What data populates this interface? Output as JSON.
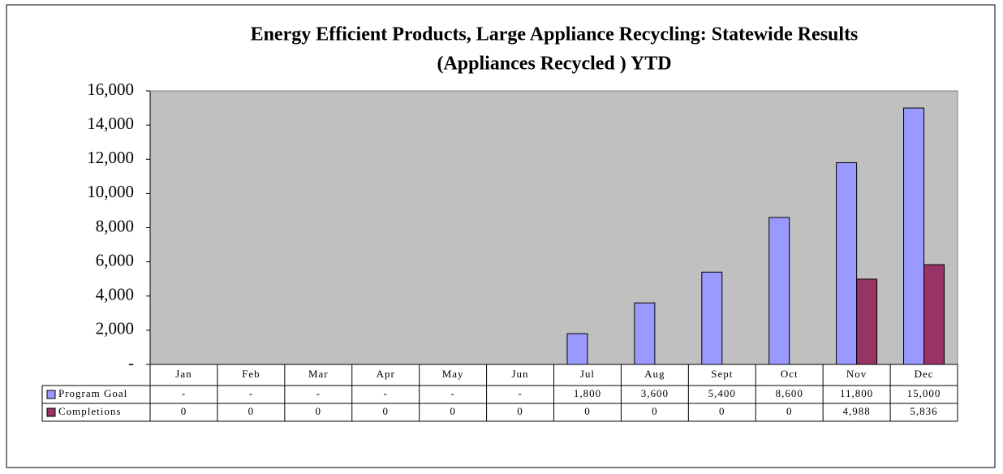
{
  "chart_data": {
    "type": "bar",
    "title": [
      "Energy Efficient Products, Large Appliance Recycling: Statewide Results",
      "(Appliances Recycled ) YTD"
    ],
    "categories": [
      "Jan",
      "Feb",
      "Mar",
      "Apr",
      "May",
      "Jun",
      "Jul",
      "Aug",
      "Sept",
      "Oct",
      "Nov",
      "Dec"
    ],
    "series": [
      {
        "name": "Program Goal",
        "color": "#9999ff",
        "values": [
          0,
          0,
          0,
          0,
          0,
          0,
          1800,
          3600,
          5400,
          8600,
          11800,
          15000
        ],
        "value_labels": [
          "-",
          "-",
          "-",
          "-",
          "-",
          "-",
          "1,800",
          "3,600",
          "5,400",
          "8,600",
          "11,800",
          "15,000"
        ]
      },
      {
        "name": "Completions",
        "color": "#993366",
        "values": [
          0,
          0,
          0,
          0,
          0,
          0,
          0,
          0,
          0,
          0,
          4988,
          5836
        ],
        "value_labels": [
          "0",
          "0",
          "0",
          "0",
          "0",
          "0",
          "0",
          "0",
          "0",
          "0",
          "4,988",
          "5,836"
        ]
      }
    ],
    "ylim": [
      0,
      16000
    ],
    "yticks": [
      {
        "value": 0,
        "label": "-"
      },
      {
        "value": 2000,
        "label": "2,000"
      },
      {
        "value": 4000,
        "label": "4,000"
      },
      {
        "value": 6000,
        "label": "6,000"
      },
      {
        "value": 8000,
        "label": "8,000"
      },
      {
        "value": 10000,
        "label": "10,000"
      },
      {
        "value": 12000,
        "label": "12,000"
      },
      {
        "value": 14000,
        "label": "14,000"
      },
      {
        "value": 16000,
        "label": "16,000"
      }
    ],
    "plot_background": "#c0c0c0",
    "grid": false
  }
}
